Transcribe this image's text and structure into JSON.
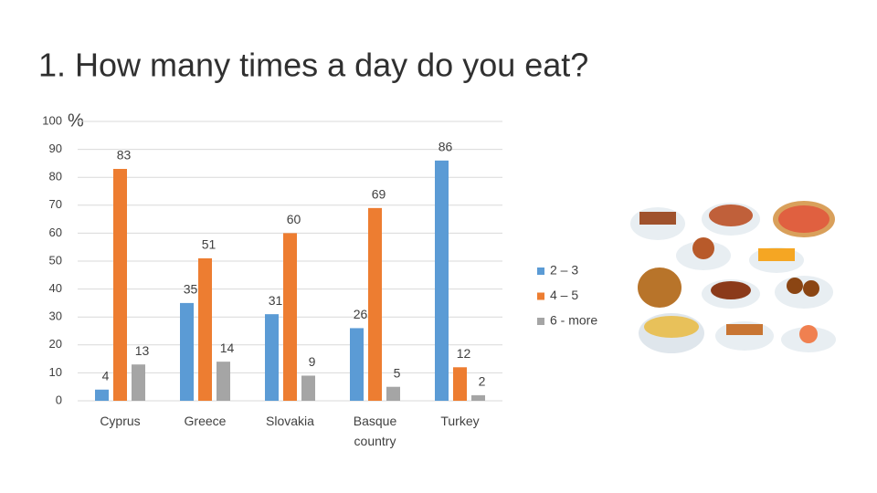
{
  "chart_data": {
    "type": "bar",
    "title": "1. How many times a day do you eat?",
    "y_label": "%",
    "categories": [
      "Cyprus",
      "Greece",
      "Slovakia",
      "Basque country",
      "Turkey"
    ],
    "series": [
      {
        "name": "2 – 3",
        "color": "#5b9bd5",
        "values": [
          4,
          35,
          31,
          26,
          86
        ]
      },
      {
        "name": "4 – 5",
        "color": "#ed7d31",
        "values": [
          83,
          51,
          60,
          69,
          12
        ]
      },
      {
        "name": "6 - more",
        "color": "#a5a5a5",
        "values": [
          13,
          14,
          9,
          5,
          2
        ]
      }
    ],
    "ylim": [
      0,
      100
    ],
    "yticks": [
      0,
      10,
      20,
      30,
      40,
      50,
      60,
      70,
      80,
      90,
      100
    ],
    "grid": true,
    "legend": "right"
  }
}
